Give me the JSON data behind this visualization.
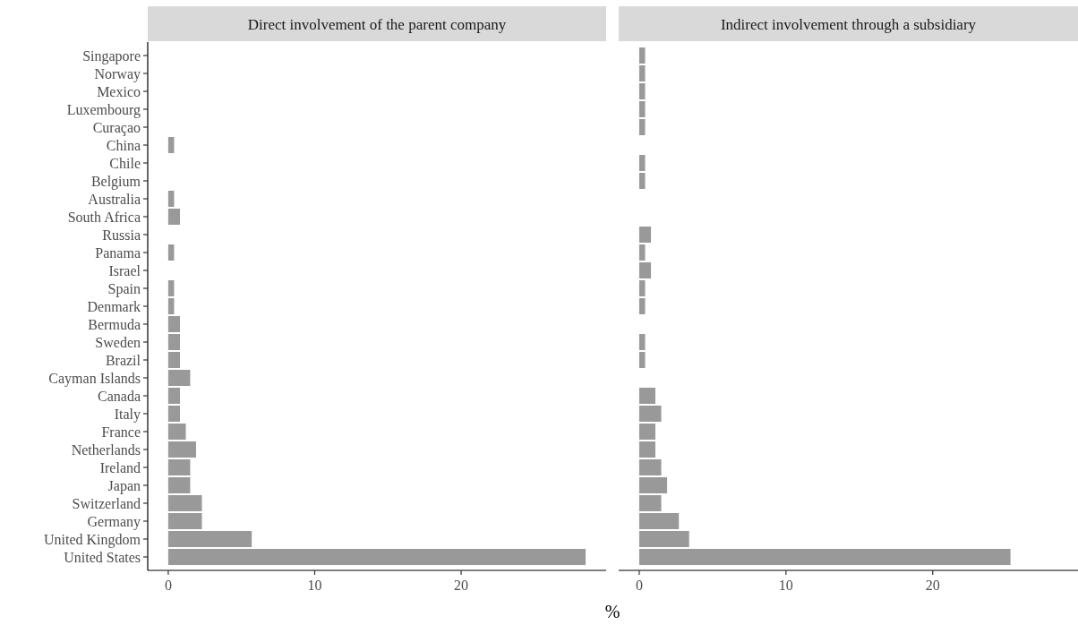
{
  "chart_data": [
    {
      "type": "bar",
      "orientation": "horizontal",
      "title": "Direct involvement of the parent company",
      "xlabel": "%",
      "categories": [
        "Singapore",
        "Norway",
        "Mexico",
        "Luxembourg",
        "Curaçao",
        "China",
        "Chile",
        "Belgium",
        "Australia",
        "South Africa",
        "Russia",
        "Panama",
        "Israel",
        "Spain",
        "Denmark",
        "Bermuda",
        "Sweden",
        "Brazil",
        "Cayman Islands",
        "Canada",
        "Italy",
        "France",
        "Netherlands",
        "Ireland",
        "Japan",
        "Switzerland",
        "Germany",
        "United Kingdom",
        "United States"
      ],
      "values": [
        0,
        0,
        0,
        0,
        0,
        0.4,
        0,
        0,
        0.4,
        0.8,
        0,
        0.4,
        0,
        0.4,
        0.4,
        0.8,
        0.8,
        0.8,
        1.5,
        0.8,
        0.8,
        1.2,
        1.9,
        1.5,
        1.5,
        2.3,
        2.3,
        5.7,
        28.5
      ],
      "color": "#999999",
      "xlim": [
        -1.4,
        29.9
      ],
      "xticks": [
        0,
        10,
        20
      ],
      "grid": false
    },
    {
      "type": "bar",
      "orientation": "horizontal",
      "title": "Indirect involvement through a subsidiary",
      "categories": [
        "Singapore",
        "Norway",
        "Mexico",
        "Luxembourg",
        "Curaçao",
        "China",
        "Chile",
        "Belgium",
        "Australia",
        "South Africa",
        "Russia",
        "Panama",
        "Israel",
        "Spain",
        "Denmark",
        "Bermuda",
        "Sweden",
        "Brazil",
        "Cayman Islands",
        "Canada",
        "Italy",
        "France",
        "Netherlands",
        "Ireland",
        "Japan",
        "Switzerland",
        "Germany",
        "United Kingdom",
        "United States"
      ],
      "values": [
        0.4,
        0.4,
        0.4,
        0.4,
        0.4,
        0,
        0.4,
        0.4,
        0,
        0,
        0.8,
        0.4,
        0.8,
        0.4,
        0.4,
        0,
        0.4,
        0.4,
        0,
        1.1,
        1.5,
        1.1,
        1.1,
        1.5,
        1.9,
        1.5,
        2.7,
        3.4,
        25.3
      ],
      "color": "#999999",
      "xlim": [
        -1.4,
        29.9
      ],
      "xticks": [
        0,
        10,
        20
      ],
      "grid": false,
      "tick_labels": "x"
    }
  ]
}
